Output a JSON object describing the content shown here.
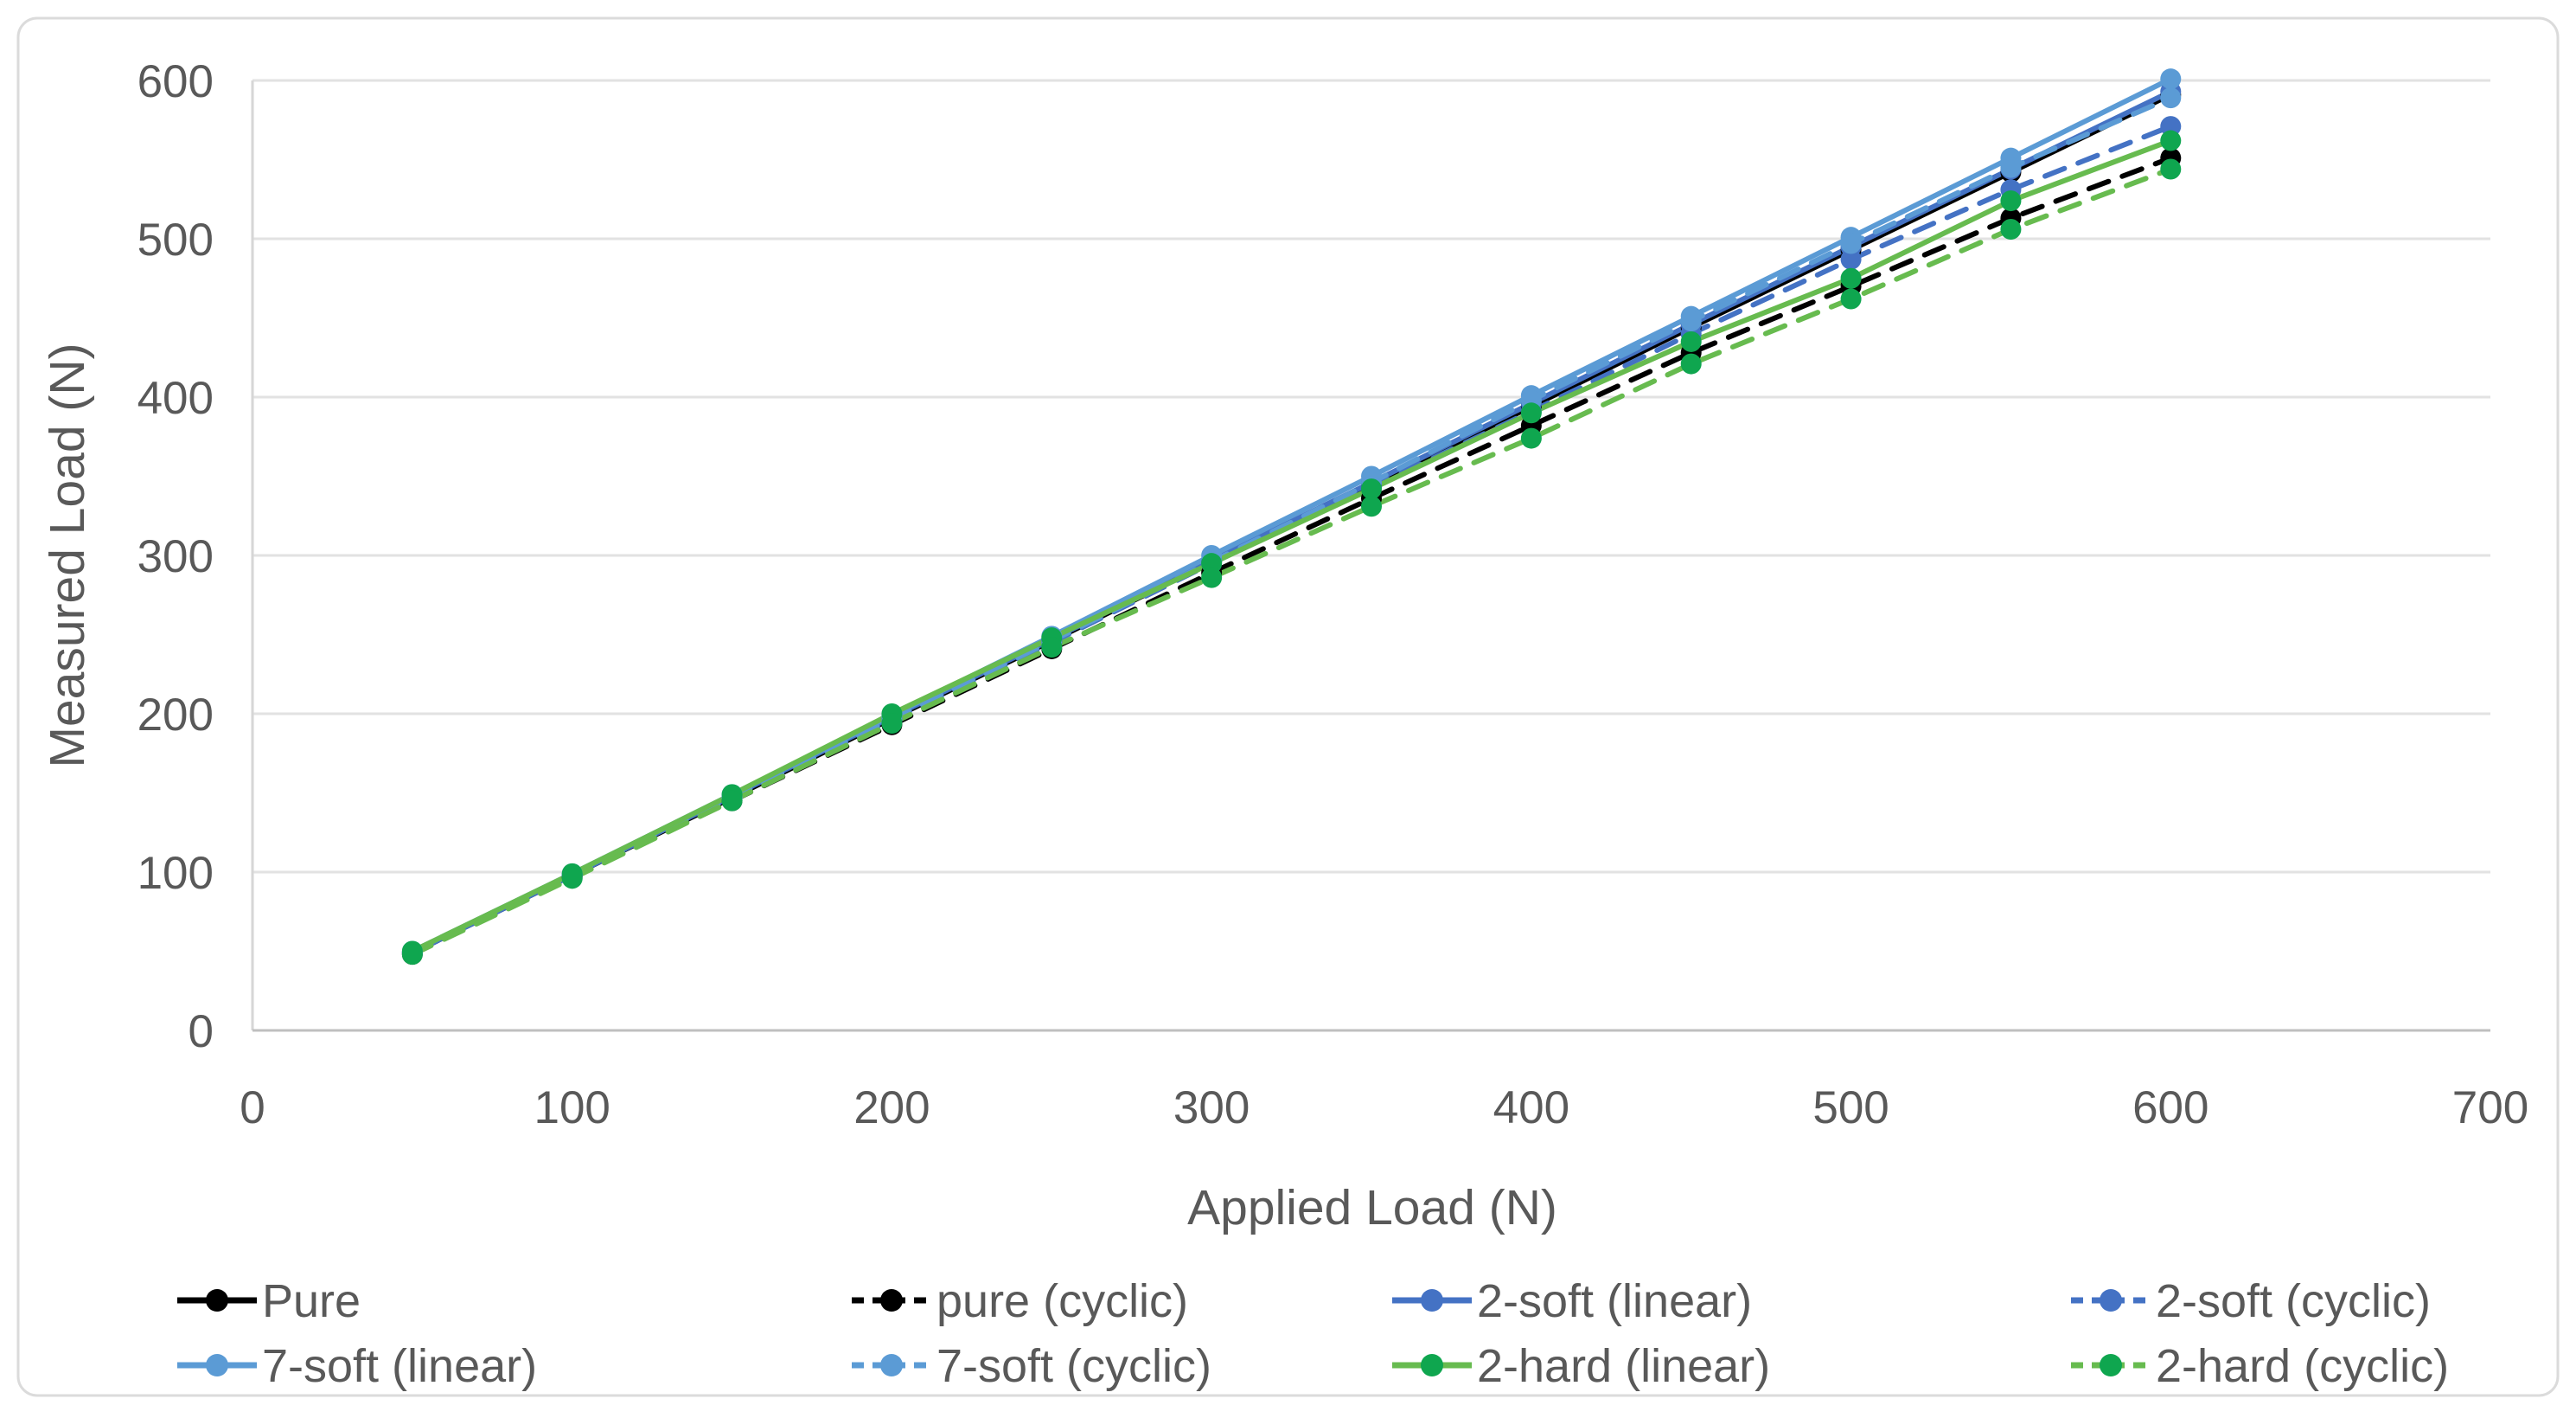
{
  "chart_data": {
    "type": "line",
    "title": "",
    "xlabel": "Applied Load (N)",
    "ylabel": "Measured Load (N)",
    "x": [
      50,
      100,
      150,
      200,
      250,
      300,
      350,
      400,
      450,
      500,
      550,
      600
    ],
    "xlim": [
      0,
      700
    ],
    "ylim": [
      0,
      600
    ],
    "x_tick_step": 100,
    "y_tick_step": 100,
    "grid": "horizontal-only",
    "legend_position": "bottom",
    "colors": {
      "black": "#000000",
      "dark_blue": "#4472C4",
      "light_blue": "#5B9BD5",
      "green_line": "#67BB4F",
      "green_marker": "#0FA64F",
      "gridline": "#E2E2E2",
      "axis_line": "#BFBFBF",
      "text": "#595959"
    },
    "series": [
      {
        "name": "Pure",
        "style": "solid",
        "color": "#000000",
        "marker_color": "#000000",
        "values": [
          49,
          98,
          147,
          197,
          246,
          296,
          345,
          394,
          444,
          493,
          542,
          591
        ]
      },
      {
        "name": "pure (cyclic)",
        "style": "dashed",
        "color": "#000000",
        "marker_color": "#000000",
        "values": [
          48,
          97,
          145,
          193,
          241,
          289,
          336,
          382,
          428,
          470,
          513,
          551
        ]
      },
      {
        "name": "2-soft (linear)",
        "style": "solid",
        "color": "#4472C4",
        "marker_color": "#4472C4",
        "values": [
          49,
          98,
          148,
          198,
          247,
          297,
          346,
          396,
          446,
          495,
          544,
          593
        ]
      },
      {
        "name": "2-soft (cyclic)",
        "style": "dashed",
        "color": "#4472C4",
        "marker_color": "#4472C4",
        "values": [
          49,
          98,
          147,
          196,
          245,
          295,
          343,
          391,
          440,
          487,
          531,
          571
        ]
      },
      {
        "name": "7-soft (linear)",
        "style": "solid",
        "color": "#5B9BD5",
        "marker_color": "#5B9BD5",
        "values": [
          50,
          99,
          149,
          199,
          249,
          300,
          350,
          401,
          451,
          501,
          551,
          601
        ]
      },
      {
        "name": "7-soft (cyclic)",
        "style": "dashed",
        "color": "#5B9BD5",
        "marker_color": "#5B9BD5",
        "values": [
          49,
          98,
          147,
          197,
          246,
          296,
          346,
          398,
          448,
          497,
          545,
          589
        ]
      },
      {
        "name": "2-hard (linear)",
        "style": "solid",
        "color": "#67BB4F",
        "marker_color": "#0FA64F",
        "values": [
          50,
          99,
          149,
          200,
          248,
          295,
          342,
          390,
          435,
          475,
          524,
          562
        ]
      },
      {
        "name": "2-hard (cyclic)",
        "style": "dashed",
        "color": "#67BB4F",
        "marker_color": "#0FA64F",
        "values": [
          48,
          96,
          145,
          194,
          242,
          286,
          331,
          374,
          421,
          462,
          506,
          544
        ]
      }
    ]
  }
}
